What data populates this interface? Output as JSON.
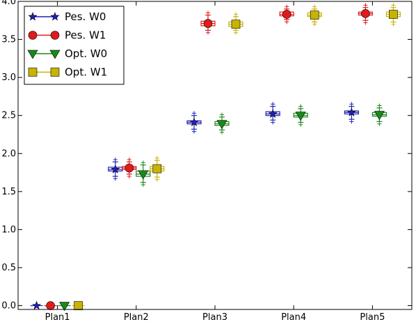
{
  "chart_data": {
    "type": "scatter",
    "title": "",
    "xlabel": "",
    "ylabel": "",
    "categories": [
      "Plan1",
      "Plan2",
      "Plan3",
      "Plan4",
      "Plan5"
    ],
    "ylim": [
      -0.05,
      4.0
    ],
    "yticks": [
      0.0,
      0.5,
      1.0,
      1.5,
      2.0,
      2.5,
      3.0,
      3.5,
      4.0
    ],
    "ytick_labels": [
      "0.0",
      "0.5",
      "1.0",
      "1.5",
      "2.0",
      "2.5",
      "3.0",
      "3.5",
      "4.0"
    ],
    "grid": false,
    "legend_position": "top-left",
    "series": [
      {
        "name": "Pes. W0",
        "color": "#1f1fbf",
        "marker": "star",
        "values": [
          0.0,
          1.79,
          2.41,
          2.52,
          2.54
        ],
        "whisker_low": [
          0.0,
          1.7,
          2.32,
          2.44,
          2.45
        ],
        "whisker_high": [
          0.0,
          1.89,
          2.5,
          2.62,
          2.62
        ],
        "box_low": [
          0.0,
          1.77,
          2.39,
          2.5,
          2.52
        ],
        "box_high": [
          0.0,
          1.82,
          2.43,
          2.55,
          2.56
        ]
      },
      {
        "name": "Pes. W1",
        "color": "#e01b1b",
        "marker": "circle",
        "values": [
          0.0,
          1.81,
          3.71,
          3.83,
          3.84
        ],
        "whisker_low": [
          0.0,
          1.73,
          3.62,
          3.76,
          3.75
        ],
        "whisker_high": [
          0.0,
          1.89,
          3.82,
          3.9,
          3.92
        ],
        "box_low": [
          0.0,
          1.79,
          3.68,
          3.81,
          3.82
        ],
        "box_high": [
          0.0,
          1.83,
          3.74,
          3.86,
          3.86
        ]
      },
      {
        "name": "Opt. W0",
        "color": "#198a19",
        "marker": "triangle-down",
        "values": [
          0.0,
          1.73,
          2.39,
          2.5,
          2.51
        ],
        "whisker_low": [
          0.0,
          1.62,
          2.31,
          2.41,
          2.42
        ],
        "whisker_high": [
          0.0,
          1.85,
          2.48,
          2.59,
          2.6
        ],
        "box_low": [
          0.0,
          1.7,
          2.37,
          2.48,
          2.49
        ],
        "box_high": [
          0.0,
          1.77,
          2.42,
          2.53,
          2.54
        ]
      },
      {
        "name": "Opt. W1",
        "color": "#c8b400",
        "marker": "square",
        "values": [
          0.0,
          1.8,
          3.7,
          3.82,
          3.83
        ],
        "whisker_low": [
          0.0,
          1.69,
          3.62,
          3.73,
          3.73
        ],
        "whisker_high": [
          0.0,
          1.91,
          3.8,
          3.9,
          3.92
        ],
        "box_low": [
          0.0,
          1.77,
          3.67,
          3.8,
          3.8
        ],
        "box_high": [
          0.0,
          1.83,
          3.73,
          3.85,
          3.86
        ]
      }
    ]
  }
}
